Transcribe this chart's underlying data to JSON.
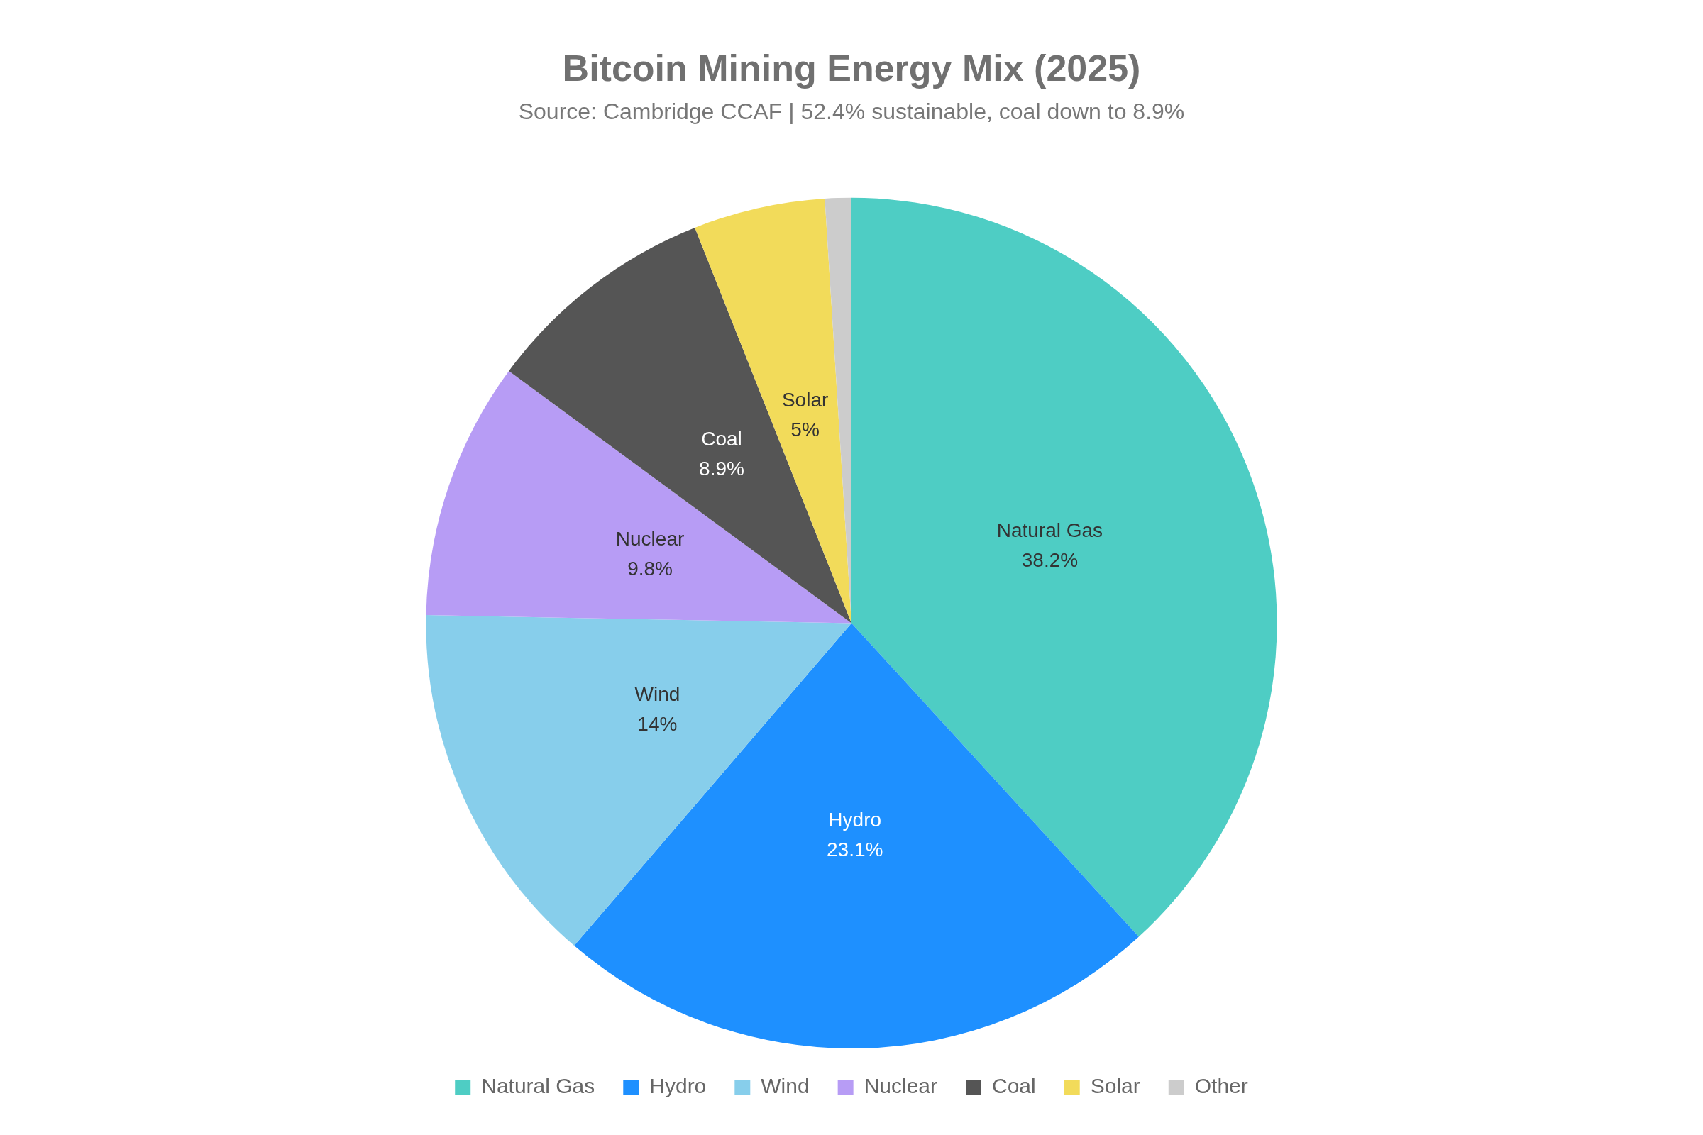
{
  "chart_data": {
    "type": "pie",
    "title": "Bitcoin Mining Energy Mix (2025)",
    "subtitle": "Source: Cambridge CCAF | 52.4% sustainable, coal down to 8.9%",
    "categories": [
      "Natural Gas",
      "Hydro",
      "Wind",
      "Nuclear",
      "Coal",
      "Solar",
      "Other"
    ],
    "values": [
      38.2,
      23.1,
      14,
      9.8,
      8.9,
      5,
      1
    ],
    "colors": [
      "#4ecdc4",
      "#1e90ff",
      "#87ceeb",
      "#b79cf5",
      "#555555",
      "#f2db5a",
      "#cccccc"
    ],
    "value_labels": [
      "38.2%",
      "23.1%",
      "14%",
      "9.8%",
      "8.9%",
      "5%",
      null
    ],
    "legend": "bottom"
  }
}
